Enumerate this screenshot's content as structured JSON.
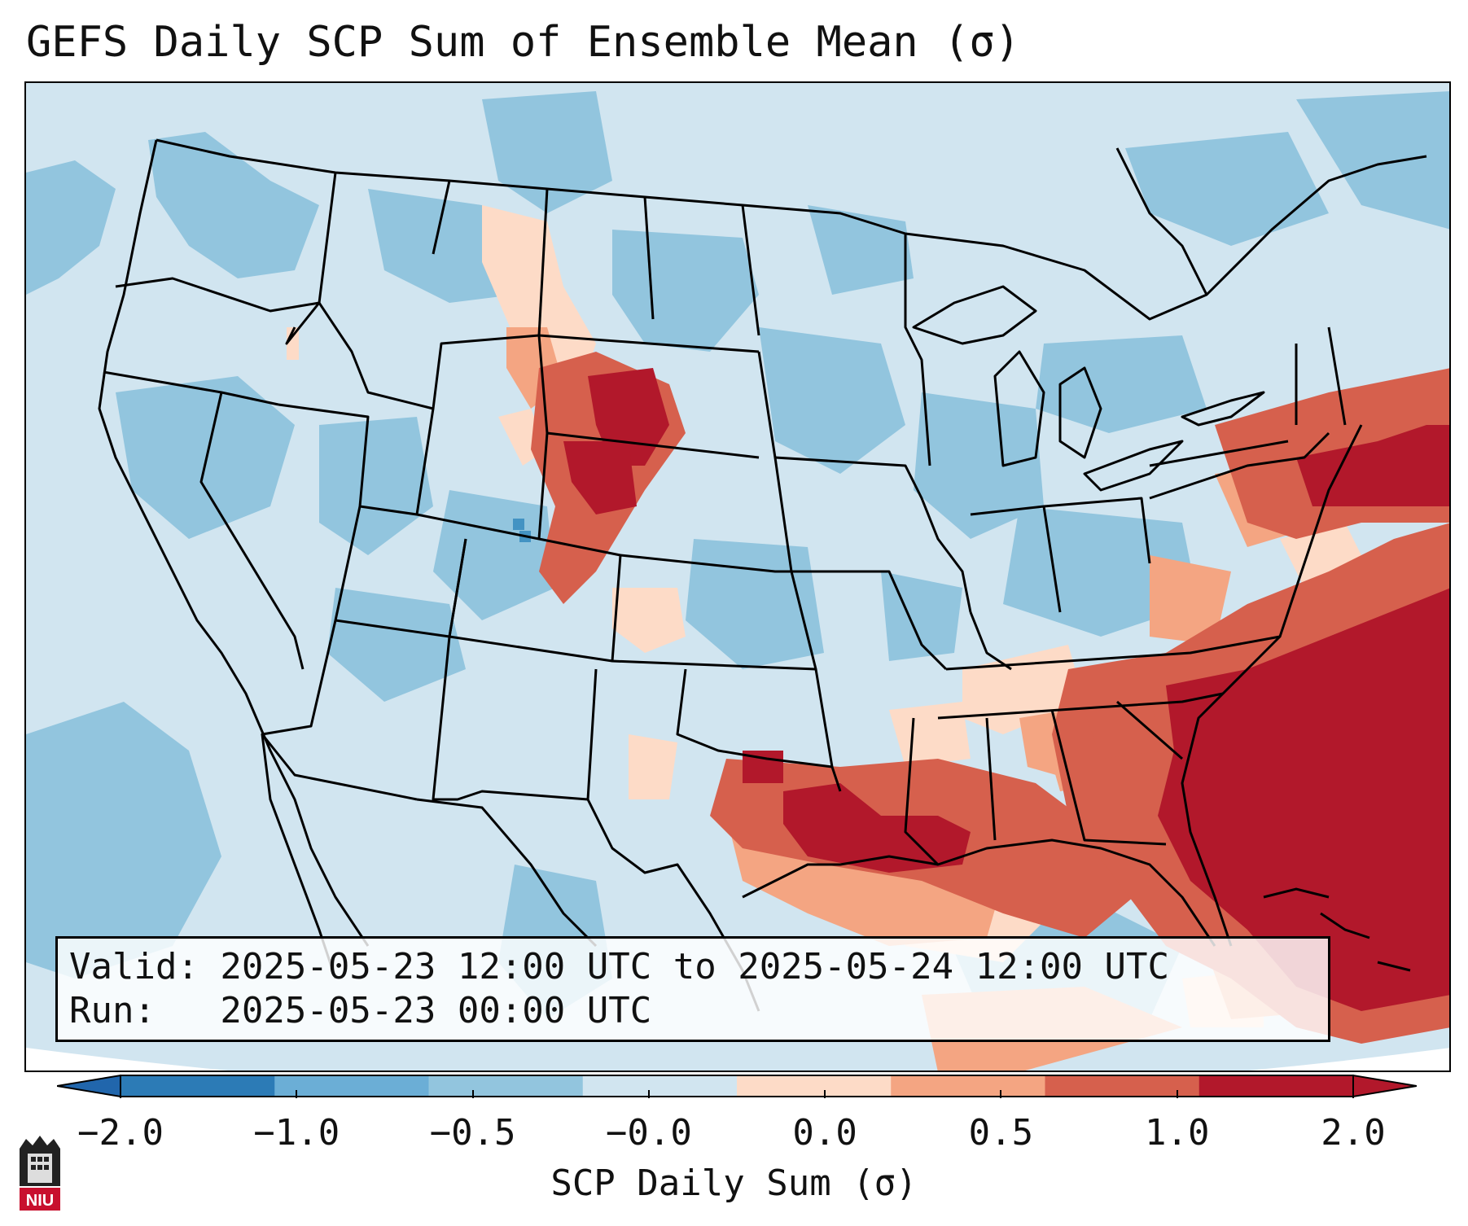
{
  "title": "GEFS Daily SCP Sum of Ensemble Mean (σ)",
  "info": {
    "valid_line": "Valid: 2025-05-23 12:00 UTC to 2025-05-24 12:00 UTC",
    "run_line": "Run:   2025-05-23 00:00 UTC"
  },
  "colorbar": {
    "label": "SCP Daily Sum (σ)",
    "ticks": [
      "−2.0",
      "−1.0",
      "−0.5",
      "−0.0",
      "0.0",
      "0.5",
      "1.0",
      "2.0"
    ],
    "colors": [
      "#2c7bb6",
      "#6baed6",
      "#92c5de",
      "#d1e5f0",
      "#fddbc7",
      "#f4a582",
      "#d6604d",
      "#b2182b"
    ],
    "under_color": "#2166ac",
    "over_color": "#b2182b"
  },
  "map": {
    "background_class_color": "#d1e5f0",
    "labels": {
      "logo_text": "NIU"
    }
  }
}
